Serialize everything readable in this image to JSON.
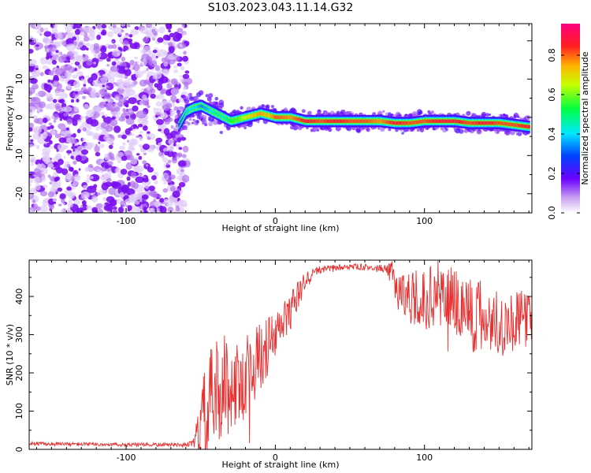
{
  "figure_title": "S103.2023.043.11.14.G32",
  "colors": {
    "snr_line": "#e83030",
    "scatter_base": "#7a10f0",
    "frame": "#000000"
  },
  "colorbar": {
    "label": "Normalized spectral amplitude",
    "ticks": [
      "0.0",
      "0.2",
      "0.4",
      "0.6",
      "0.8"
    ],
    "tick_values": [
      0.0,
      0.2,
      0.4,
      0.6,
      0.8
    ],
    "range": [
      0,
      0.96
    ],
    "colormap": "gist_rainbow_reversed (white-violet-blue-cyan-green-yellow-red-magenta)"
  },
  "chart_data": [
    {
      "type": "heatmap",
      "title": "",
      "xlabel": "Height of straight line (km)",
      "ylabel": "Frequency (Hz)",
      "xlim": [
        -165,
        172
      ],
      "ylim": [
        -25,
        24.5
      ],
      "xticks": [
        -100,
        0,
        100
      ],
      "yticks": [
        -20,
        -10,
        0,
        10,
        20
      ],
      "xtick_labels": [
        "-100",
        "0",
        "100"
      ],
      "ytick_labels": [
        "-20",
        "-10",
        "0",
        "10",
        "20"
      ],
      "noise_region_x": [
        -165,
        -65
      ],
      "ridge": {
        "name": "",
        "x": [
          -65,
          -60,
          -55,
          -50,
          -45,
          -40,
          -35,
          -30,
          -25,
          -20,
          -15,
          -10,
          -5,
          0,
          10,
          20,
          30,
          40,
          50,
          60,
          70,
          80,
          90,
          100,
          110,
          120,
          130,
          140,
          150,
          160,
          170
        ],
        "y": [
          -2,
          1.5,
          2.5,
          3,
          2,
          1,
          0,
          -1,
          -0.5,
          0,
          0.5,
          1,
          0.5,
          0,
          0,
          -1,
          -1,
          -1,
          -1,
          -1,
          -1,
          -1.5,
          -1.5,
          -1,
          -1,
          -1,
          -1.5,
          -1.5,
          -1.5,
          -2,
          -2.5
        ],
        "amplitude": [
          0.3,
          0.4,
          0.45,
          0.35,
          0.4,
          0.5,
          0.45,
          0.55,
          0.6,
          0.7,
          0.75,
          0.8,
          0.75,
          0.85,
          0.8,
          0.9,
          0.85,
          0.9,
          0.85,
          0.85,
          0.8,
          0.9,
          0.85,
          0.85,
          0.9,
          0.9,
          0.85,
          0.9,
          0.85,
          0.85,
          0.9
        ]
      }
    },
    {
      "type": "line",
      "title": "",
      "xlabel": "Height of straight line (km)",
      "ylabel": "SNR (10 * v/v)",
      "xlim": [
        -165,
        172
      ],
      "ylim": [
        0,
        495
      ],
      "xticks": [
        -100,
        0,
        100
      ],
      "yticks": [
        0,
        100,
        200,
        300,
        400
      ],
      "xtick_labels": [
        "-100",
        "0",
        "100"
      ],
      "ytick_labels": [
        "0",
        "100",
        "200",
        "300",
        "400"
      ],
      "series": [
        {
          "name": "",
          "x": [
            -165,
            -150,
            -120,
            -90,
            -70,
            -60,
            -55,
            -50,
            -45,
            -40,
            -35,
            -30,
            -25,
            -20,
            -15,
            -10,
            -5,
            0,
            5,
            10,
            15,
            20,
            25,
            30,
            40,
            50,
            60,
            70,
            75,
            80,
            85,
            90,
            100,
            110,
            120,
            130,
            140,
            150,
            160,
            172
          ],
          "y": [
            15,
            14,
            13,
            12,
            12,
            13,
            15,
            40,
            100,
            140,
            170,
            160,
            170,
            200,
            220,
            240,
            270,
            290,
            330,
            360,
            400,
            440,
            460,
            470,
            475,
            478,
            477,
            475,
            470,
            440,
            410,
            400,
            390,
            410,
            390,
            360,
            340,
            330,
            335,
            345
          ],
          "spread": [
            5,
            5,
            5,
            5,
            5,
            5,
            8,
            120,
            150,
            150,
            140,
            120,
            110,
            110,
            100,
            90,
            80,
            70,
            60,
            50,
            40,
            25,
            15,
            10,
            8,
            8,
            8,
            8,
            12,
            60,
            60,
            70,
            80,
            90,
            100,
            110,
            100,
            90,
            80,
            70
          ]
        }
      ]
    }
  ]
}
